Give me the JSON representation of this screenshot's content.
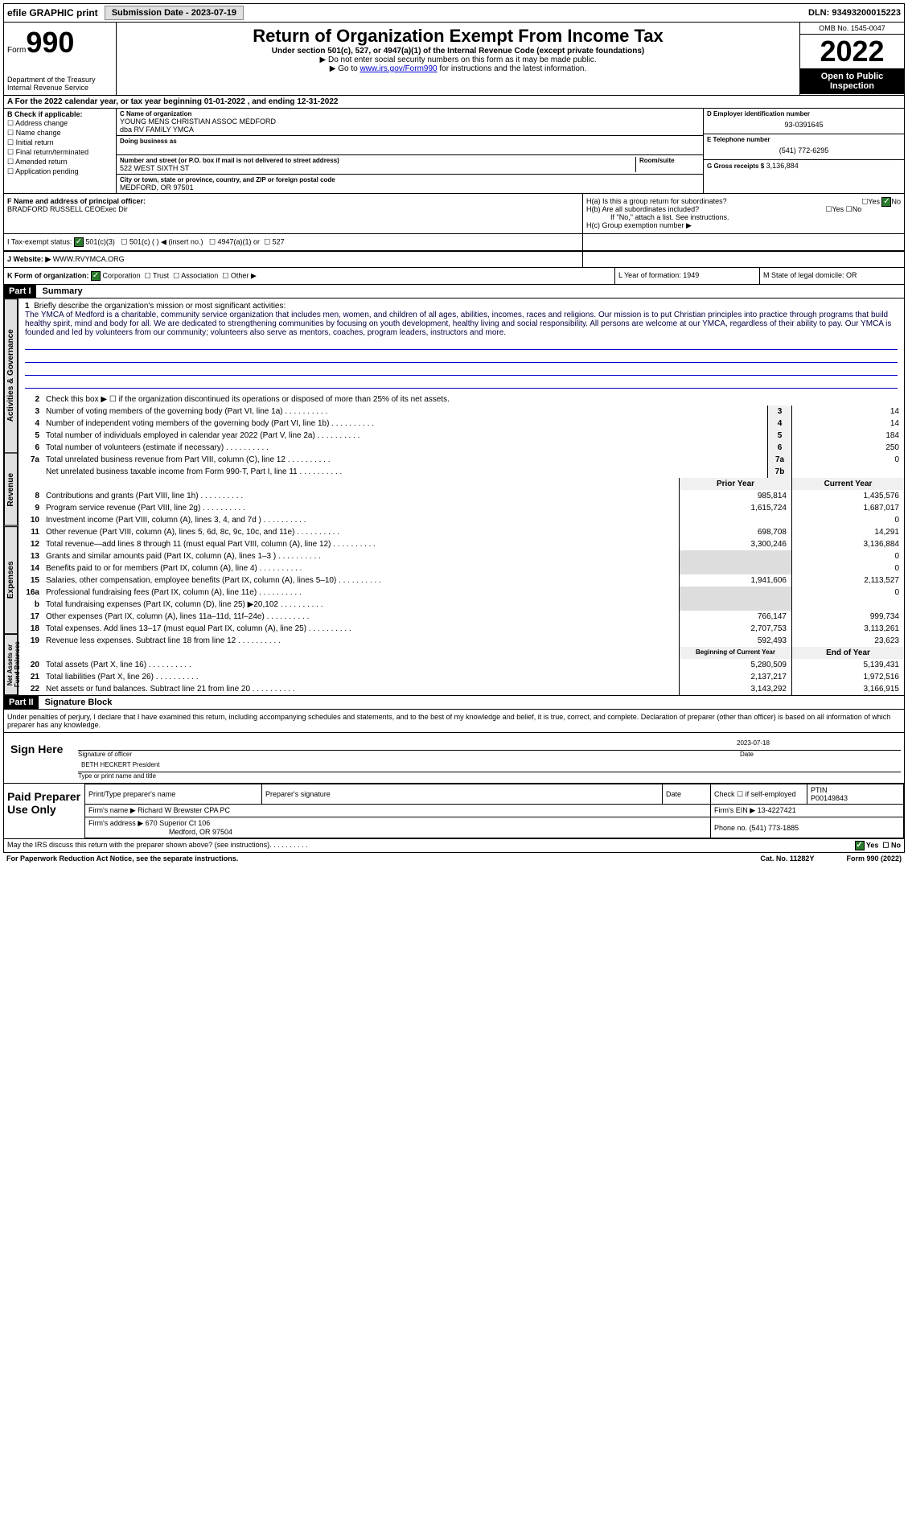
{
  "top": {
    "efile": "efile GRAPHIC print",
    "submission_btn": "Submission Date - 2023-07-19",
    "dln": "DLN: 93493200015223"
  },
  "header": {
    "form_word": "Form",
    "form_num": "990",
    "title": "Return of Organization Exempt From Income Tax",
    "subtitle": "Under section 501(c), 527, or 4947(a)(1) of the Internal Revenue Code (except private foundations)",
    "note1": "▶ Do not enter social security numbers on this form as it may be made public.",
    "note2_prefix": "▶ Go to ",
    "note2_link": "www.irs.gov/Form990",
    "note2_suffix": " for instructions and the latest information.",
    "dept": "Department of the Treasury\nInternal Revenue Service",
    "omb": "OMB No. 1545-0047",
    "year": "2022",
    "open_public": "Open to Public Inspection"
  },
  "rowA": "A For the 2022 calendar year, or tax year beginning 01-01-2022   , and ending 12-31-2022",
  "colB": {
    "header": "B Check if applicable:",
    "items": [
      "Address change",
      "Name change",
      "Initial return",
      "Final return/terminated",
      "Amended return",
      "Application pending"
    ]
  },
  "colC": {
    "name_lbl": "C Name of organization",
    "name": "YOUNG MENS CHRISTIAN ASSOC MEDFORD",
    "dba": "dba RV FAMILY YMCA",
    "doing_lbl": "Doing business as",
    "addr_lbl": "Number and street (or P.O. box if mail is not delivered to street address)",
    "addr": "522 WEST SIXTH ST",
    "room_lbl": "Room/suite",
    "city_lbl": "City or town, state or province, country, and ZIP or foreign postal code",
    "city": "MEDFORD, OR  97501"
  },
  "colD": {
    "ein_lbl": "D Employer identification number",
    "ein": "93-0391645",
    "phone_lbl": "E Telephone number",
    "phone": "(541) 772-6295",
    "gross_lbl": "G Gross receipts $",
    "gross": "3,136,884"
  },
  "rowF": {
    "lbl": "F  Name and address of principal officer:",
    "name": "BRADFORD RUSSELL CEOExec Dir"
  },
  "rowH": {
    "ha": "H(a)  Is this a group return for subordinates?",
    "hb": "H(b)  Are all subordinates included?",
    "hb_note": "If \"No,\" attach a list. See instructions.",
    "hc": "H(c)  Group exemption number ▶"
  },
  "rowI": {
    "lbl": "I   Tax-exempt status:",
    "opts": [
      "501(c)(3)",
      "501(c) (  ) ◀ (insert no.)",
      "4947(a)(1) or",
      "527"
    ]
  },
  "rowJ": {
    "lbl": "J   Website: ▶",
    "val": "WWW.RVYMCA.ORG"
  },
  "rowK": {
    "lbl": "K Form of organization:",
    "opts": [
      "Corporation",
      "Trust",
      "Association",
      "Other ▶"
    ],
    "L": "L Year of formation: 1949",
    "M": "M State of legal domicile: OR"
  },
  "part1": {
    "hdr": "Part I",
    "title": "Summary",
    "q1_lbl": "1",
    "q1": "Briefly describe the organization's mission or most significant activities:",
    "mission": "The YMCA of Medford is a charitable, community service organization that includes men, women, and children of all ages, abilities, incomes, races and religions. Our mission is to put Christian principles into practice through programs that build healthy spirit, mind and body for all. We are dedicated to strengthening communities by focusing on youth development, healthy living and social responsibility. All persons are welcome at our YMCA, regardless of their ability to pay. Our YMCA is founded and led by volunteers from our community; volunteers also serve as mentors, coaches, program leaders, instructors and more.",
    "q2": "Check this box ▶ ☐ if the organization discontinued its operations or disposed of more than 25% of its net assets.",
    "tab_gov": "Activities & Governance",
    "tab_rev": "Revenue",
    "tab_exp": "Expenses",
    "tab_net": "Net Assets or Fund Balances",
    "lines_gov": [
      {
        "n": "3",
        "t": "Number of voting members of the governing body (Part VI, line 1a)",
        "box": "3",
        "v": "14"
      },
      {
        "n": "4",
        "t": "Number of independent voting members of the governing body (Part VI, line 1b)",
        "box": "4",
        "v": "14"
      },
      {
        "n": "5",
        "t": "Total number of individuals employed in calendar year 2022 (Part V, line 2a)",
        "box": "5",
        "v": "184"
      },
      {
        "n": "6",
        "t": "Total number of volunteers (estimate if necessary)",
        "box": "6",
        "v": "250"
      },
      {
        "n": "7a",
        "t": "Total unrelated business revenue from Part VIII, column (C), line 12",
        "box": "7a",
        "v": "0"
      },
      {
        "n": "",
        "t": "Net unrelated business taxable income from Form 990-T, Part I, line 11",
        "box": "7b",
        "v": ""
      }
    ],
    "col_prior": "Prior Year",
    "col_current": "Current Year",
    "lines_rev": [
      {
        "n": "8",
        "t": "Contributions and grants (Part VIII, line 1h)",
        "p": "985,814",
        "c": "1,435,576"
      },
      {
        "n": "9",
        "t": "Program service revenue (Part VIII, line 2g)",
        "p": "1,615,724",
        "c": "1,687,017"
      },
      {
        "n": "10",
        "t": "Investment income (Part VIII, column (A), lines 3, 4, and 7d )",
        "p": "",
        "c": "0"
      },
      {
        "n": "11",
        "t": "Other revenue (Part VIII, column (A), lines 5, 6d, 8c, 9c, 10c, and 11e)",
        "p": "698,708",
        "c": "14,291"
      },
      {
        "n": "12",
        "t": "Total revenue—add lines 8 through 11 (must equal Part VIII, column (A), line 12)",
        "p": "3,300,246",
        "c": "3,136,884"
      }
    ],
    "lines_exp": [
      {
        "n": "13",
        "t": "Grants and similar amounts paid (Part IX, column (A), lines 1–3 )",
        "p": "",
        "c": "0"
      },
      {
        "n": "14",
        "t": "Benefits paid to or for members (Part IX, column (A), line 4)",
        "p": "",
        "c": "0"
      },
      {
        "n": "15",
        "t": "Salaries, other compensation, employee benefits (Part IX, column (A), lines 5–10)",
        "p": "1,941,606",
        "c": "2,113,527"
      },
      {
        "n": "16a",
        "t": "Professional fundraising fees (Part IX, column (A), line 11e)",
        "p": "",
        "c": "0"
      },
      {
        "n": "b",
        "t": "Total fundraising expenses (Part IX, column (D), line 25) ▶20,102",
        "p": "",
        "c": ""
      },
      {
        "n": "17",
        "t": "Other expenses (Part IX, column (A), lines 11a–11d, 11f–24e)",
        "p": "766,147",
        "c": "999,734"
      },
      {
        "n": "18",
        "t": "Total expenses. Add lines 13–17 (must equal Part IX, column (A), line 25)",
        "p": "2,707,753",
        "c": "3,113,261"
      },
      {
        "n": "19",
        "t": "Revenue less expenses. Subtract line 18 from line 12",
        "p": "592,493",
        "c": "23,623"
      }
    ],
    "col_begin": "Beginning of Current Year",
    "col_end": "End of Year",
    "lines_net": [
      {
        "n": "20",
        "t": "Total assets (Part X, line 16)",
        "p": "5,280,509",
        "c": "5,139,431"
      },
      {
        "n": "21",
        "t": "Total liabilities (Part X, line 26)",
        "p": "2,137,217",
        "c": "1,972,516"
      },
      {
        "n": "22",
        "t": "Net assets or fund balances. Subtract line 21 from line 20",
        "p": "3,143,292",
        "c": "3,166,915"
      }
    ]
  },
  "part2": {
    "hdr": "Part II",
    "title": "Signature Block",
    "decl": "Under penalties of perjury, I declare that I have examined this return, including accompanying schedules and statements, and to the best of my knowledge and belief, it is true, correct, and complete. Declaration of preparer (other than officer) is based on all information of which preparer has any knowledge.",
    "sign_here": "Sign Here",
    "sig_officer": "Signature of officer",
    "date": "Date",
    "date_val": "2023-07-18",
    "name": "BETH HECKERT President",
    "name_lbl": "Type or print name and title",
    "paid": "Paid Preparer Use Only",
    "prep_name_lbl": "Print/Type preparer's name",
    "prep_sig_lbl": "Preparer's signature",
    "prep_date_lbl": "Date",
    "self_emp": "Check ☐ if self-employed",
    "ptin_lbl": "PTIN",
    "ptin": "P00149843",
    "firm_name_lbl": "Firm's name    ▶",
    "firm_name": "Richard W Brewster CPA PC",
    "firm_ein_lbl": "Firm's EIN ▶",
    "firm_ein": "13-4227421",
    "firm_addr_lbl": "Firm's address ▶",
    "firm_addr": "670 Superior Ct 106",
    "firm_city": "Medford, OR  97504",
    "firm_phone_lbl": "Phone no.",
    "firm_phone": "(541) 773-1885"
  },
  "footer": {
    "discuss": "May the IRS discuss this return with the preparer shown above? (see instructions)",
    "yes": "Yes",
    "no": "No",
    "paperwork": "For Paperwork Reduction Act Notice, see the separate instructions.",
    "cat": "Cat. No. 11282Y",
    "form": "Form 990 (2022)"
  }
}
